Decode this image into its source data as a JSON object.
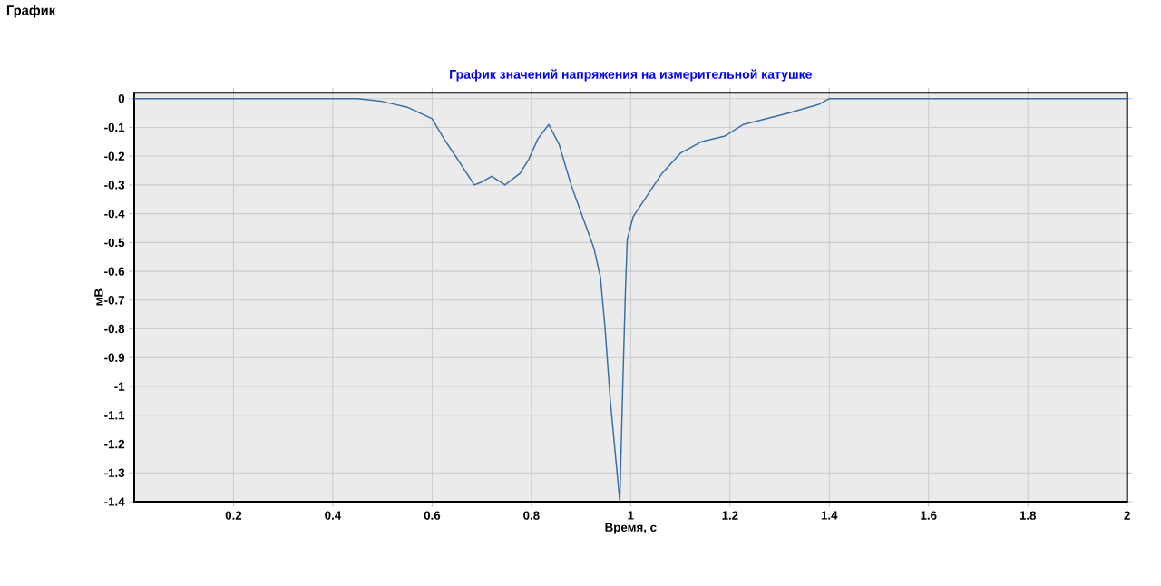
{
  "chart_data": {
    "type": "line",
    "title": "График значений напряжения на измерительной катушке",
    "xlabel": "Время, с",
    "ylabel": "мВ",
    "annotations": [
      "График"
    ],
    "x": [
      0,
      0.1,
      0.2,
      0.3,
      0.4,
      0.45,
      0.5,
      0.55,
      0.6,
      0.624,
      0.655,
      0.685,
      0.7,
      0.72,
      0.747,
      0.777,
      0.795,
      0.813,
      0.835,
      0.856,
      0.88,
      0.905,
      0.926,
      0.939,
      0.948,
      0.959,
      0.978,
      0.984,
      0.989,
      0.993,
      1.005,
      1.032,
      1.063,
      1.1,
      1.142,
      1.19,
      1.227,
      1.25,
      1.319,
      1.379,
      1.4,
      1.5,
      1.6,
      1.7,
      1.8,
      1.9,
      2
    ],
    "series": [
      {
        "color": "#3a6ea5",
        "values": [
          0,
          0,
          0,
          0,
          0,
          0,
          -0.01,
          -0.03,
          -0.07,
          -0.14,
          -0.22,
          -0.3,
          -0.29,
          -0.27,
          -0.3,
          -0.26,
          -0.21,
          -0.14,
          -0.09,
          -0.16,
          -0.3,
          -0.42,
          -0.52,
          -0.62,
          -0.79,
          -1.05,
          -1.4,
          -1,
          -0.69,
          -0.49,
          -0.41,
          -0.34,
          -0.26,
          -0.19,
          -0.15,
          -0.13,
          -0.09,
          -0.08,
          -0.05,
          -0.02,
          0,
          0,
          0,
          0,
          0,
          0,
          0
        ]
      }
    ],
    "xlim": [
      0,
      2
    ],
    "ylim": [
      -1.4,
      0.02
    ],
    "xticks": [
      0.2,
      0.4,
      0.6,
      0.8,
      1,
      1.2,
      1.4,
      1.6,
      1.8,
      2
    ],
    "yticks": [
      0,
      -0.1,
      -0.2,
      -0.3,
      -0.4,
      -0.5,
      -0.6,
      -0.7,
      -0.8,
      -0.9,
      -1,
      -1.1,
      -1.2,
      -1.3,
      -1.4
    ],
    "grid": true,
    "marker": "none",
    "line_style": "solid"
  }
}
